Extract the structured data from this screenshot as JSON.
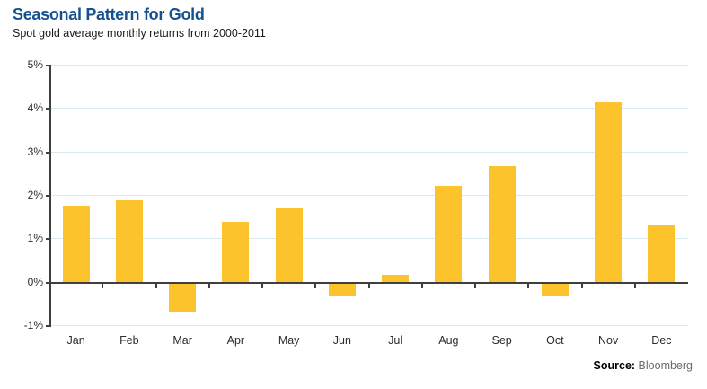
{
  "header": {
    "title": "Seasonal Pattern for Gold",
    "subtitle": "Spot gold average monthly returns from 2000-2011"
  },
  "source": {
    "label": "Source:",
    "value": "Bloomberg"
  },
  "colors": {
    "title": "#15518f",
    "bar": "#fcc32c",
    "gridline": "#d9e9ef",
    "axis": "#3f3f3f"
  },
  "chart_data": {
    "type": "bar",
    "title": "Seasonal Pattern for Gold",
    "subtitle": "Spot gold average monthly returns from 2000-2011",
    "categories": [
      "Jan",
      "Feb",
      "Mar",
      "Apr",
      "May",
      "Jun",
      "Jul",
      "Aug",
      "Sep",
      "Oct",
      "Nov",
      "Dec"
    ],
    "values": [
      1.75,
      1.87,
      -0.65,
      1.37,
      1.72,
      -0.3,
      0.15,
      2.2,
      2.67,
      -0.3,
      4.15,
      1.3
    ],
    "unit": "%",
    "xlabel": "",
    "ylabel": "",
    "ylim": [
      -1,
      5
    ],
    "ytick_step": 1,
    "ytick_labels": [
      "5%",
      "4%",
      "3%",
      "2%",
      "1%",
      "0%",
      "-1%"
    ],
    "grid": true,
    "legend": "none",
    "source": "Bloomberg"
  }
}
